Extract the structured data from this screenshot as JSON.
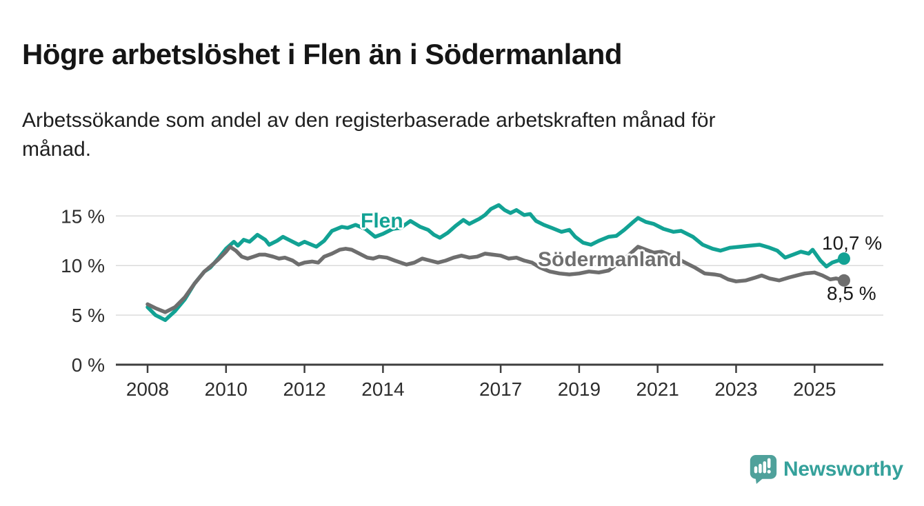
{
  "header": {
    "title": "Högre arbetslöshet i Flen än i Södermanland",
    "subtitle": "Arbetssökande som andel av den registerbaserade arbetskraften månad för månad."
  },
  "footer": {
    "brand": "Newsworthy"
  },
  "colors": {
    "flen": "#12A294",
    "sodermanland": "#6E6E6E",
    "sodermanland_label": "#6F6F6F",
    "grid": "#DBDBDB",
    "axis": "#3E3E3E",
    "tick_text": "#2E2E2E",
    "value_text": "#1A1A1A",
    "logo_icon": "#4FA19B",
    "logo_text": "#35A19B"
  },
  "chart_data": {
    "type": "line",
    "title": "Högre arbetslöshet i Flen än i Södermanland",
    "subtitle": "Arbetssökande som andel av den registerbaserade arbetskraften månad för månad.",
    "unit": "%",
    "x_unit": "decimal-year (monthly data)",
    "xlim": [
      2008,
      2025.75
    ],
    "ylim": [
      0,
      16.5
    ],
    "grid": "horizontal gridlines at 5, 10, 15",
    "legend_position": "inline-labels-on-lines",
    "yticks": [
      {
        "value": 0,
        "label": "0 %"
      },
      {
        "value": 5,
        "label": "5 %"
      },
      {
        "value": 10,
        "label": "10 %"
      },
      {
        "value": 15,
        "label": "15 %"
      }
    ],
    "xticks": [
      {
        "value": 2008,
        "label": "2008"
      },
      {
        "value": 2010,
        "label": "2010"
      },
      {
        "value": 2012,
        "label": "2012"
      },
      {
        "value": 2014,
        "label": "2014"
      },
      {
        "value": 2017,
        "label": "2017"
      },
      {
        "value": 2019,
        "label": "2019"
      },
      {
        "value": 2021,
        "label": "2021"
      },
      {
        "value": 2023,
        "label": "2023"
      },
      {
        "value": 2025,
        "label": "2025"
      }
    ],
    "series": [
      {
        "name": "Flen",
        "color": "#12A294",
        "end_value": 10.7,
        "end_label": "10,7 %",
        "points": [
          [
            2008.0,
            5.8
          ],
          [
            2008.2,
            5.0
          ],
          [
            2008.45,
            4.5
          ],
          [
            2008.7,
            5.4
          ],
          [
            2008.95,
            6.6
          ],
          [
            2009.2,
            8.2
          ],
          [
            2009.45,
            9.4
          ],
          [
            2009.6,
            9.8
          ],
          [
            2009.8,
            10.7
          ],
          [
            2010.0,
            11.7
          ],
          [
            2010.2,
            12.4
          ],
          [
            2010.3,
            12.0
          ],
          [
            2010.45,
            12.6
          ],
          [
            2010.6,
            12.4
          ],
          [
            2010.8,
            13.1
          ],
          [
            2011.0,
            12.6
          ],
          [
            2011.1,
            12.1
          ],
          [
            2011.3,
            12.5
          ],
          [
            2011.45,
            12.9
          ],
          [
            2011.6,
            12.6
          ],
          [
            2011.85,
            12.1
          ],
          [
            2012.0,
            12.4
          ],
          [
            2012.3,
            11.9
          ],
          [
            2012.5,
            12.5
          ],
          [
            2012.7,
            13.5
          ],
          [
            2012.95,
            13.9
          ],
          [
            2013.1,
            13.8
          ],
          [
            2013.3,
            14.1
          ],
          [
            2013.55,
            13.7
          ],
          [
            2013.8,
            12.9
          ],
          [
            2014.0,
            13.2
          ],
          [
            2014.25,
            13.7
          ],
          [
            2014.45,
            13.8
          ],
          [
            2014.7,
            14.5
          ],
          [
            2014.95,
            13.9
          ],
          [
            2015.15,
            13.6
          ],
          [
            2015.3,
            13.1
          ],
          [
            2015.45,
            12.8
          ],
          [
            2015.65,
            13.3
          ],
          [
            2015.85,
            14.0
          ],
          [
            2016.05,
            14.6
          ],
          [
            2016.2,
            14.2
          ],
          [
            2016.45,
            14.7
          ],
          [
            2016.6,
            15.1
          ],
          [
            2016.75,
            15.7
          ],
          [
            2016.95,
            16.1
          ],
          [
            2017.1,
            15.6
          ],
          [
            2017.25,
            15.3
          ],
          [
            2017.4,
            15.6
          ],
          [
            2017.6,
            15.1
          ],
          [
            2017.75,
            15.2
          ],
          [
            2017.9,
            14.5
          ],
          [
            2018.1,
            14.1
          ],
          [
            2018.3,
            13.8
          ],
          [
            2018.55,
            13.4
          ],
          [
            2018.75,
            13.6
          ],
          [
            2018.9,
            12.9
          ],
          [
            2019.1,
            12.3
          ],
          [
            2019.3,
            12.1
          ],
          [
            2019.5,
            12.5
          ],
          [
            2019.75,
            12.9
          ],
          [
            2019.95,
            13.0
          ],
          [
            2020.15,
            13.6
          ],
          [
            2020.35,
            14.3
          ],
          [
            2020.5,
            14.8
          ],
          [
            2020.7,
            14.4
          ],
          [
            2020.9,
            14.2
          ],
          [
            2021.15,
            13.7
          ],
          [
            2021.4,
            13.4
          ],
          [
            2021.6,
            13.5
          ],
          [
            2021.9,
            12.9
          ],
          [
            2022.15,
            12.1
          ],
          [
            2022.4,
            11.7
          ],
          [
            2022.6,
            11.5
          ],
          [
            2022.85,
            11.8
          ],
          [
            2023.1,
            11.9
          ],
          [
            2023.35,
            12.0
          ],
          [
            2023.6,
            12.1
          ],
          [
            2023.85,
            11.8
          ],
          [
            2024.05,
            11.5
          ],
          [
            2024.25,
            10.8
          ],
          [
            2024.45,
            11.1
          ],
          [
            2024.65,
            11.4
          ],
          [
            2024.85,
            11.2
          ],
          [
            2024.95,
            11.6
          ],
          [
            2025.15,
            10.5
          ],
          [
            2025.3,
            9.9
          ],
          [
            2025.45,
            10.3
          ],
          [
            2025.6,
            10.5
          ],
          [
            2025.75,
            10.7
          ]
        ]
      },
      {
        "name": "Södermanland",
        "color": "#6E6E6E",
        "end_value": 8.5,
        "end_label": "8,5 %",
        "points": [
          [
            2008.0,
            6.1
          ],
          [
            2008.2,
            5.7
          ],
          [
            2008.45,
            5.3
          ],
          [
            2008.7,
            5.8
          ],
          [
            2008.95,
            6.8
          ],
          [
            2009.2,
            8.2
          ],
          [
            2009.45,
            9.4
          ],
          [
            2009.6,
            9.9
          ],
          [
            2009.8,
            10.6
          ],
          [
            2010.0,
            11.4
          ],
          [
            2010.1,
            11.9
          ],
          [
            2010.25,
            11.5
          ],
          [
            2010.4,
            10.9
          ],
          [
            2010.55,
            10.7
          ],
          [
            2010.7,
            10.9
          ],
          [
            2010.85,
            11.1
          ],
          [
            2011.0,
            11.1
          ],
          [
            2011.2,
            10.9
          ],
          [
            2011.35,
            10.7
          ],
          [
            2011.5,
            10.8
          ],
          [
            2011.7,
            10.5
          ],
          [
            2011.85,
            10.1
          ],
          [
            2012.0,
            10.3
          ],
          [
            2012.2,
            10.4
          ],
          [
            2012.35,
            10.3
          ],
          [
            2012.5,
            10.9
          ],
          [
            2012.7,
            11.2
          ],
          [
            2012.9,
            11.6
          ],
          [
            2013.05,
            11.7
          ],
          [
            2013.2,
            11.6
          ],
          [
            2013.4,
            11.2
          ],
          [
            2013.6,
            10.8
          ],
          [
            2013.75,
            10.7
          ],
          [
            2013.9,
            10.9
          ],
          [
            2014.1,
            10.8
          ],
          [
            2014.3,
            10.5
          ],
          [
            2014.6,
            10.1
          ],
          [
            2014.8,
            10.3
          ],
          [
            2015.0,
            10.7
          ],
          [
            2015.2,
            10.5
          ],
          [
            2015.4,
            10.3
          ],
          [
            2015.6,
            10.5
          ],
          [
            2015.8,
            10.8
          ],
          [
            2016.0,
            11.0
          ],
          [
            2016.2,
            10.8
          ],
          [
            2016.4,
            10.9
          ],
          [
            2016.6,
            11.2
          ],
          [
            2016.8,
            11.1
          ],
          [
            2017.0,
            11.0
          ],
          [
            2017.2,
            10.7
          ],
          [
            2017.4,
            10.8
          ],
          [
            2017.6,
            10.5
          ],
          [
            2017.8,
            10.3
          ],
          [
            2018.0,
            9.8
          ],
          [
            2018.25,
            9.4
          ],
          [
            2018.5,
            9.2
          ],
          [
            2018.75,
            9.1
          ],
          [
            2019.0,
            9.2
          ],
          [
            2019.25,
            9.4
          ],
          [
            2019.5,
            9.3
          ],
          [
            2019.75,
            9.5
          ],
          [
            2020.0,
            10.2
          ],
          [
            2020.25,
            11.0
          ],
          [
            2020.5,
            11.9
          ],
          [
            2020.7,
            11.6
          ],
          [
            2020.9,
            11.3
          ],
          [
            2021.1,
            11.4
          ],
          [
            2021.35,
            11.0
          ],
          [
            2021.6,
            10.5
          ],
          [
            2021.8,
            10.1
          ],
          [
            2021.95,
            9.8
          ],
          [
            2022.2,
            9.2
          ],
          [
            2022.45,
            9.1
          ],
          [
            2022.6,
            9.0
          ],
          [
            2022.8,
            8.6
          ],
          [
            2023.0,
            8.4
          ],
          [
            2023.25,
            8.5
          ],
          [
            2023.5,
            8.8
          ],
          [
            2023.65,
            9.0
          ],
          [
            2023.85,
            8.7
          ],
          [
            2024.1,
            8.5
          ],
          [
            2024.35,
            8.8
          ],
          [
            2024.55,
            9.0
          ],
          [
            2024.75,
            9.2
          ],
          [
            2025.0,
            9.3
          ],
          [
            2025.2,
            9.0
          ],
          [
            2025.4,
            8.6
          ],
          [
            2025.55,
            8.7
          ],
          [
            2025.75,
            8.5
          ]
        ]
      }
    ]
  }
}
